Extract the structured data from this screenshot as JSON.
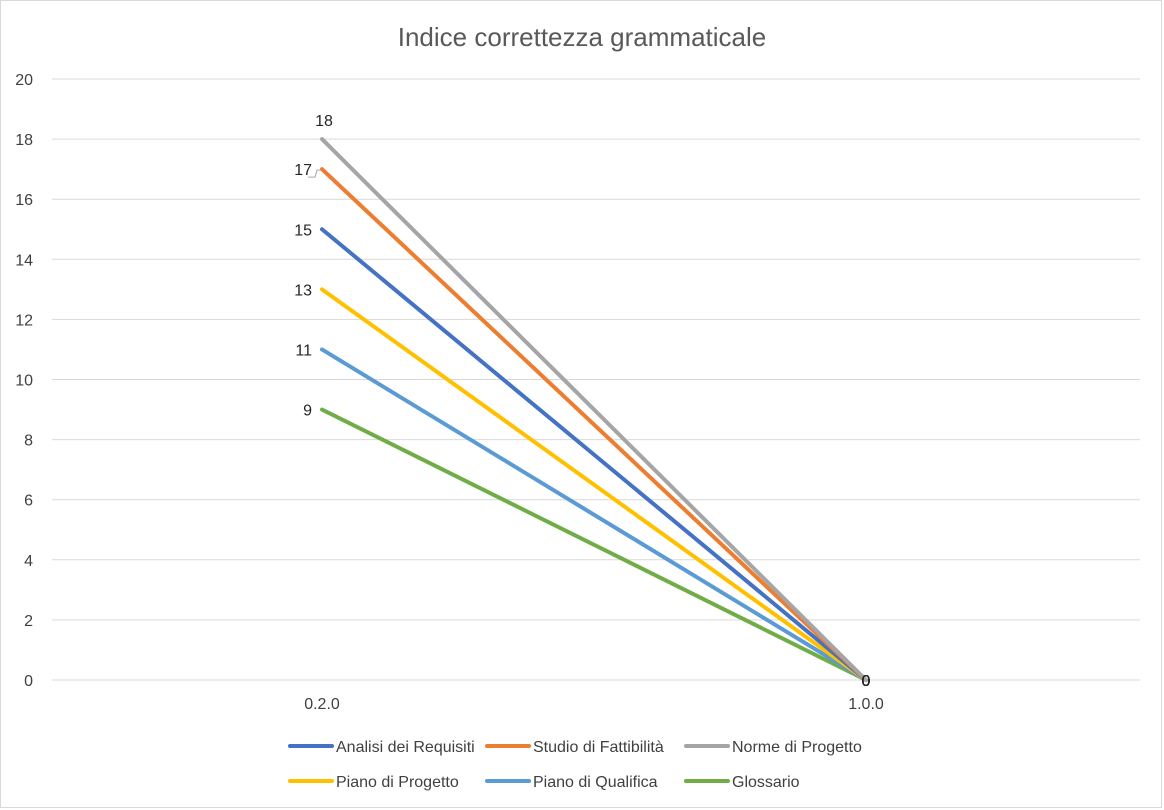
{
  "chart_data": {
    "type": "line",
    "title": "Indice correttezza grammaticale",
    "xlabel": "",
    "ylabel": "",
    "categories": [
      "0.2.0",
      "1.0.0"
    ],
    "ylim": [
      0,
      20
    ],
    "yticks": [
      0,
      2,
      4,
      6,
      8,
      10,
      12,
      14,
      16,
      18,
      20
    ],
    "grid": true,
    "legend_position": "bottom",
    "series": [
      {
        "name": "Analisi dei Requisiti",
        "values": [
          15,
          0
        ],
        "color": "#4472C4"
      },
      {
        "name": "Studio di Fattibilità",
        "values": [
          17,
          0
        ],
        "color": "#ED7D31"
      },
      {
        "name": "Norme di Progetto",
        "values": [
          18,
          0
        ],
        "color": "#A5A5A5"
      },
      {
        "name": "Piano di Progetto",
        "values": [
          13,
          0
        ],
        "color": "#FFC000"
      },
      {
        "name": "Piano di Qualifica",
        "values": [
          11,
          0
        ],
        "color": "#5B9BD5"
      },
      {
        "name": "Glossario",
        "values": [
          9,
          0
        ],
        "color": "#70AD47"
      }
    ]
  }
}
